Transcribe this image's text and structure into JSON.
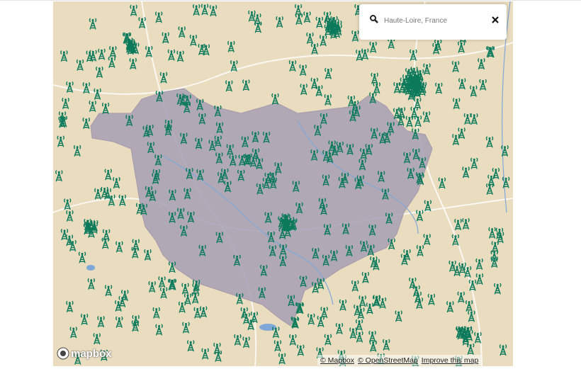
{
  "search": {
    "query": "Haute-Loire, France"
  },
  "attribution": {
    "logo": "mapbox",
    "links": [
      "© Mapbox",
      "© OpenStreetMap",
      "Improve this map"
    ]
  }
}
